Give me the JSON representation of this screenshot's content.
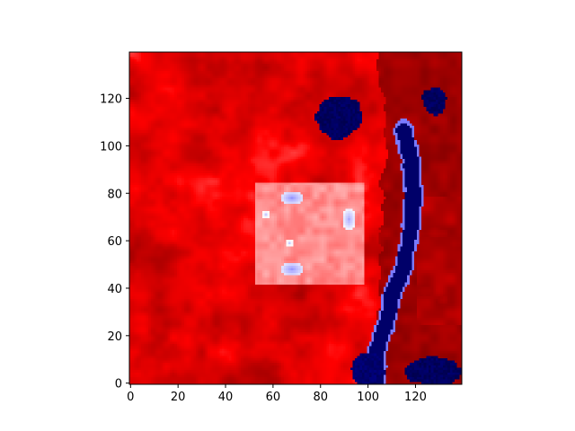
{
  "chart_data": {
    "type": "heatmap",
    "colormap": "seismic",
    "colors": {
      "low": "#00004d",
      "mid": "#ffffff",
      "high": "#800000",
      "axis": "#000000"
    },
    "grid": false,
    "rows": 140,
    "cols": 140,
    "xlim": [
      -0.5,
      139.5
    ],
    "ylim": [
      139.5,
      -0.5
    ],
    "x_ticks": [
      0,
      20,
      40,
      60,
      80,
      100,
      120
    ],
    "y_ticks": [
      0,
      20,
      40,
      60,
      80,
      100,
      120
    ],
    "x_tick_labels": [
      "0",
      "20",
      "40",
      "60",
      "80",
      "100",
      "120"
    ],
    "y_tick_labels": [
      "0",
      "20",
      "40",
      "60",
      "80",
      "100",
      "120"
    ],
    "features": [
      {
        "kind": "background",
        "value": 0.78
      },
      {
        "kind": "rect_dark_red",
        "x0": 108,
        "x1": 139,
        "y0": 0,
        "y1": 139,
        "value": 0.98
      },
      {
        "kind": "blob_dark_blue",
        "cx": 88,
        "cy": 27,
        "rx": 10,
        "ry": 9,
        "value": 0.0
      },
      {
        "kind": "blob_dark_blue",
        "cx": 128,
        "cy": 20,
        "rx": 5,
        "ry": 6,
        "value": 0.0
      },
      {
        "kind": "channel_dark_blue",
        "points": [
          [
            115,
            32
          ],
          [
            118,
            45
          ],
          [
            119,
            60
          ],
          [
            118,
            75
          ],
          [
            115,
            90
          ],
          [
            111,
            100
          ],
          [
            108,
            112
          ],
          [
            104,
            125
          ],
          [
            103,
            139
          ]
        ],
        "width": 3.5,
        "value": 0.02
      },
      {
        "kind": "blob_dark_blue",
        "cx": 128,
        "cy": 134,
        "rx": 12,
        "ry": 6,
        "value": 0.0
      },
      {
        "kind": "blob_dark_blue",
        "cx": 100,
        "cy": 133,
        "rx": 7,
        "ry": 7,
        "value": 0.02
      },
      {
        "kind": "square_light",
        "x0": 53,
        "x1": 98,
        "y0": 55,
        "y1": 97,
        "value": 0.58
      },
      {
        "kind": "spot_light_blue",
        "cx": 68,
        "cy": 61,
        "rx": 5,
        "ry": 3,
        "value": 0.4
      },
      {
        "kind": "spot_light_blue",
        "cx": 92,
        "cy": 70,
        "rx": 3,
        "ry": 5,
        "value": 0.42
      },
      {
        "kind": "spot_light_blue",
        "cx": 68,
        "cy": 91,
        "rx": 5,
        "ry": 3,
        "value": 0.4
      },
      {
        "kind": "spot_light_blue",
        "cx": 57,
        "cy": 68,
        "rx": 2,
        "ry": 2,
        "value": 0.45
      },
      {
        "kind": "spot_light_blue",
        "cx": 67,
        "cy": 80,
        "rx": 2,
        "ry": 2,
        "value": 0.45
      }
    ]
  }
}
